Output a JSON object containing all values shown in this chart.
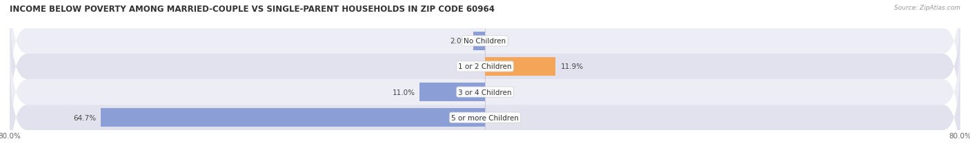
{
  "title": "INCOME BELOW POVERTY AMONG MARRIED-COUPLE VS SINGLE-PARENT HOUSEHOLDS IN ZIP CODE 60964",
  "source": "Source: ZipAtlas.com",
  "categories": [
    "No Children",
    "1 or 2 Children",
    "3 or 4 Children",
    "5 or more Children"
  ],
  "married_values": [
    2.0,
    0.0,
    11.0,
    64.7
  ],
  "single_values": [
    0.0,
    11.9,
    0.0,
    0.0
  ],
  "married_color": "#8B9ED6",
  "single_color": "#F5A558",
  "row_bg_light": "#EDEDF5",
  "row_bg_dark": "#E2E2EE",
  "xlim_left": -80.0,
  "xlim_right": 80.0,
  "title_fontsize": 8.5,
  "label_fontsize": 7.5,
  "cat_fontsize": 7.5,
  "bar_height": 0.72,
  "background_color": "#FFFFFF",
  "text_color": "#444444",
  "source_color": "#999999"
}
